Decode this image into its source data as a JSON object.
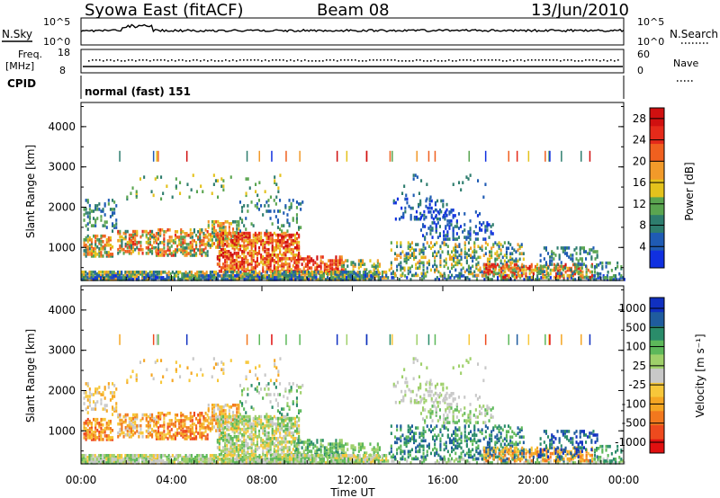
{
  "title": "Syowa East (fitACF)",
  "beam": "Beam 08",
  "date": "13/Jun/2010",
  "colors": {
    "power": [
      "#1030e0",
      "#1f5bb4",
      "#2e7d6e",
      "#5aa550",
      "#e4c21c",
      "#f19a2a",
      "#f0601f",
      "#e52a1a",
      "#d01010"
    ],
    "velocity": [
      "#e01010",
      "#ee4a1e",
      "#f2781e",
      "#f5a623",
      "#f7c73a",
      "#c8c8c8",
      "#9fd06a",
      "#5db85a",
      "#2a8c6a",
      "#1f5c9e",
      "#1030c0"
    ]
  },
  "header": {
    "nsky_label": "N.Sky",
    "nsearch_label": "N.Search",
    "freq_label": "Freq.",
    "freq_unit": "[MHz]",
    "nave_label": "Nave",
    "cpid_label": "CPID",
    "cpid_value": "normal (fast) 151",
    "noise_ticks_left": [
      "10^5",
      "10^0"
    ],
    "noise_ticks_right": [
      "10^5",
      "10^0"
    ],
    "freq_ticks": [
      "18",
      "8"
    ],
    "nave_ticks": [
      "60",
      "0"
    ]
  },
  "chart_data": [
    {
      "type": "heatmap",
      "panel": "power",
      "ylabel": "Slant Range [km]",
      "xlabel": "",
      "ylim": [
        180,
        4600
      ],
      "yticks": [
        "1000",
        "2000",
        "3000",
        "4000"
      ],
      "colorbar_label": "Power [dB]",
      "colorbar_ticks": [
        "4",
        "8",
        "12",
        "16",
        "20",
        "24",
        "28"
      ],
      "colorbar_range": [
        0,
        30
      ]
    },
    {
      "type": "heatmap",
      "panel": "velocity",
      "ylabel": "Slant Range [km]",
      "xlabel": "Time UT",
      "ylim": [
        180,
        4600
      ],
      "yticks": [
        "1000",
        "2000",
        "3000",
        "4000"
      ],
      "xticks": [
        "00:00",
        "04:00",
        "08:00",
        "12:00",
        "16:00",
        "20:00",
        "00:00"
      ],
      "colorbar_label": "Velocity [m s⁻¹]",
      "colorbar_ticks": [
        "1000",
        "500",
        "100",
        "25",
        "-25",
        "-100",
        "-500",
        "-1000"
      ]
    }
  ]
}
